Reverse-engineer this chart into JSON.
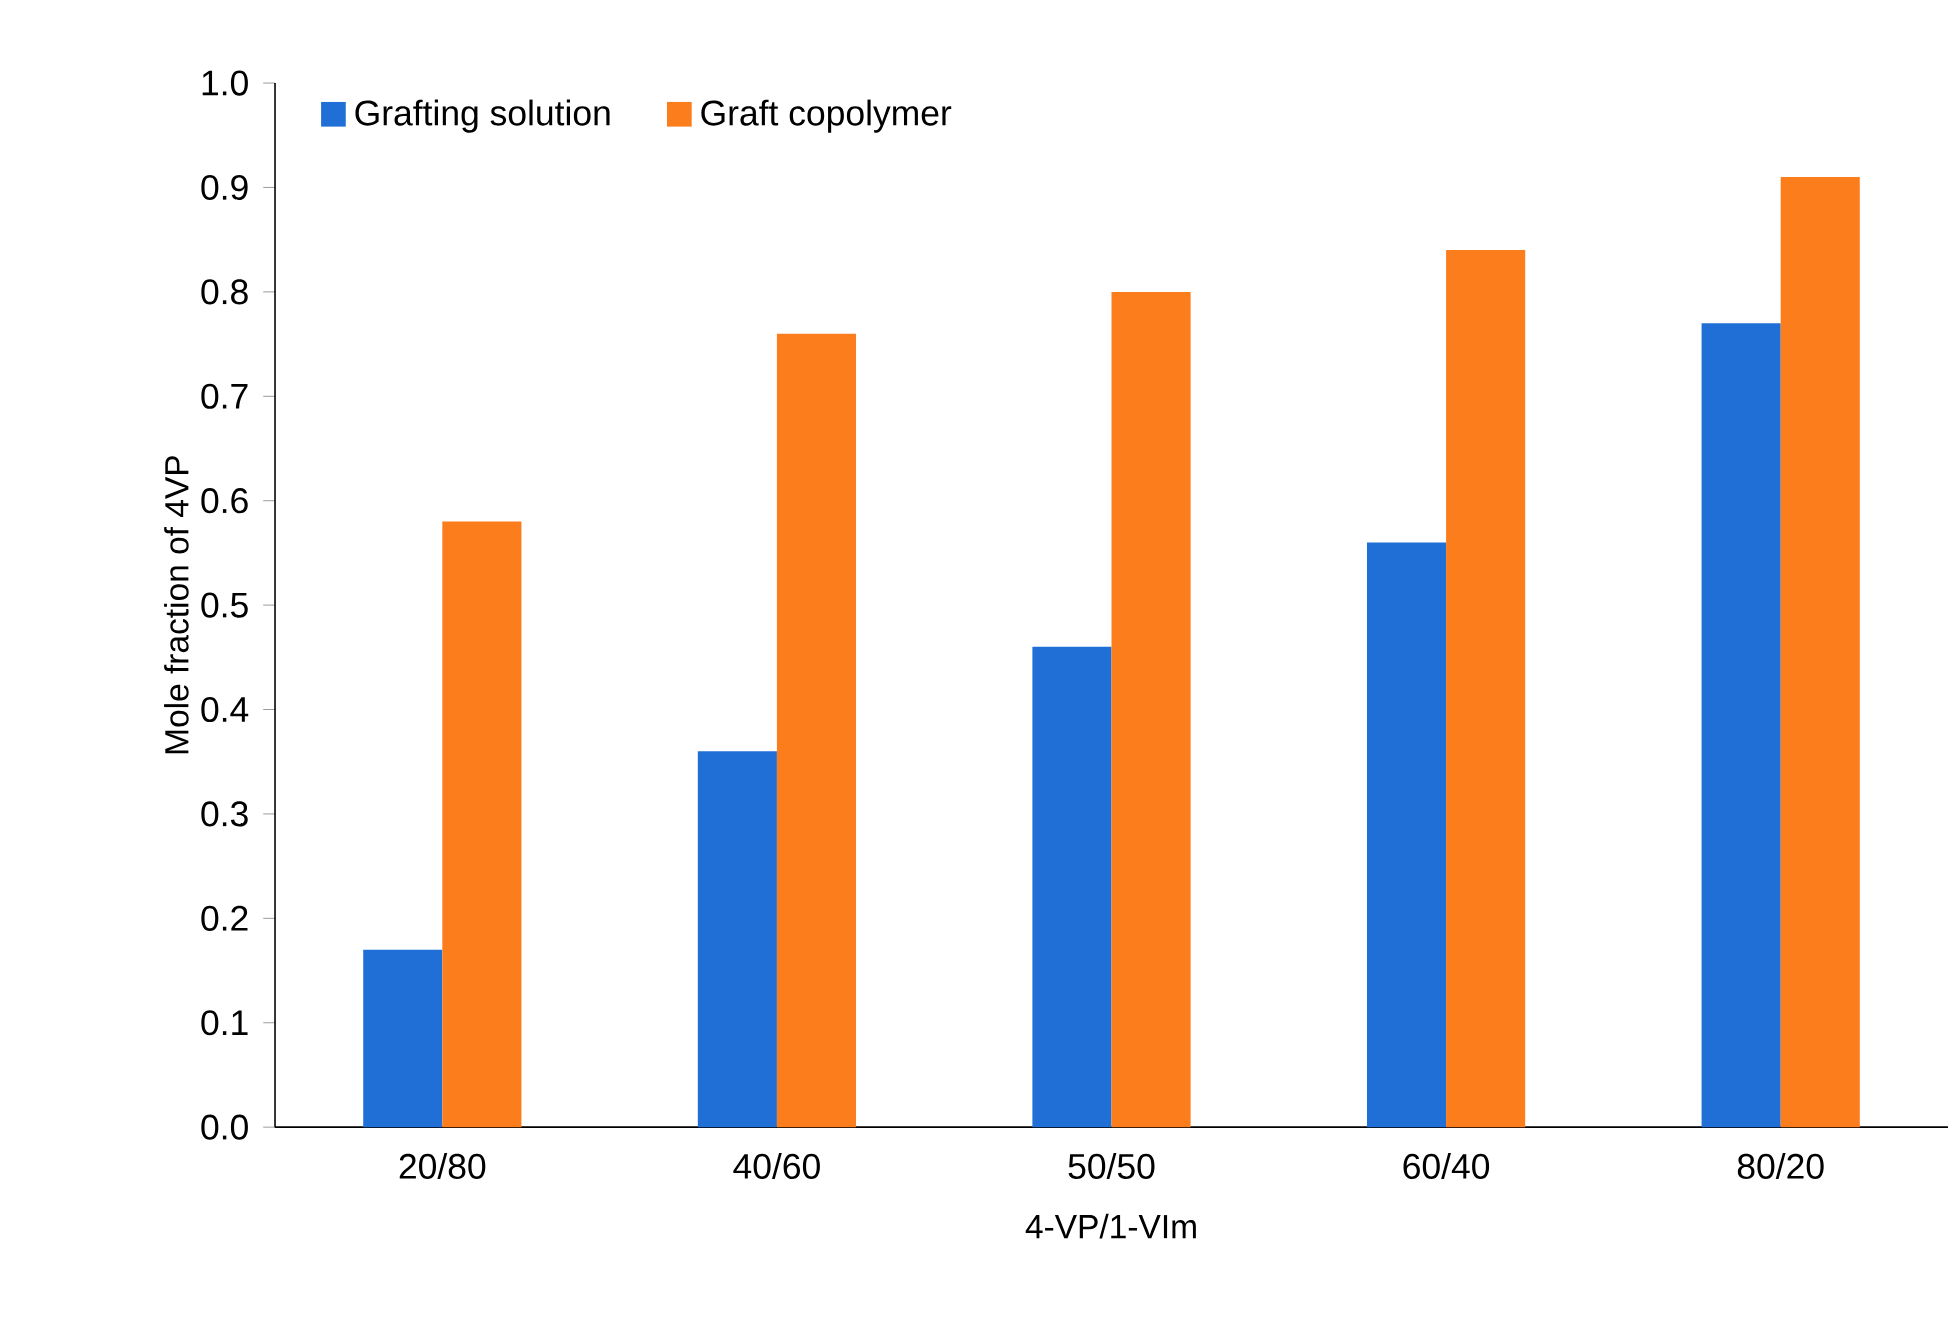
{
  "chart_data": {
    "type": "bar",
    "xlabel": "4-VP/1-VIm",
    "ylabel": "Mole fraction of 4VP",
    "categories": [
      "20/80",
      "40/60",
      "50/50",
      "60/40",
      "80/20"
    ],
    "series": [
      {
        "name": "Grafting solution",
        "color": "#1f6fd6",
        "values": [
          0.17,
          0.36,
          0.46,
          0.56,
          0.77
        ]
      },
      {
        "name": "Graft copolymer",
        "color": "#fb7d1c",
        "values": [
          0.58,
          0.76,
          0.8,
          0.84,
          0.91
        ]
      }
    ],
    "ylim": [
      0,
      1.0
    ],
    "yticks": [
      {
        "value": 0,
        "label": "0.0"
      },
      0.1,
      0.2,
      0.3,
      0.4,
      0.5,
      0.6,
      0.7,
      0.8,
      0.9,
      {
        "value": 1.0,
        "label": "1.0"
      }
    ],
    "legend": "top left",
    "grid": false
  }
}
